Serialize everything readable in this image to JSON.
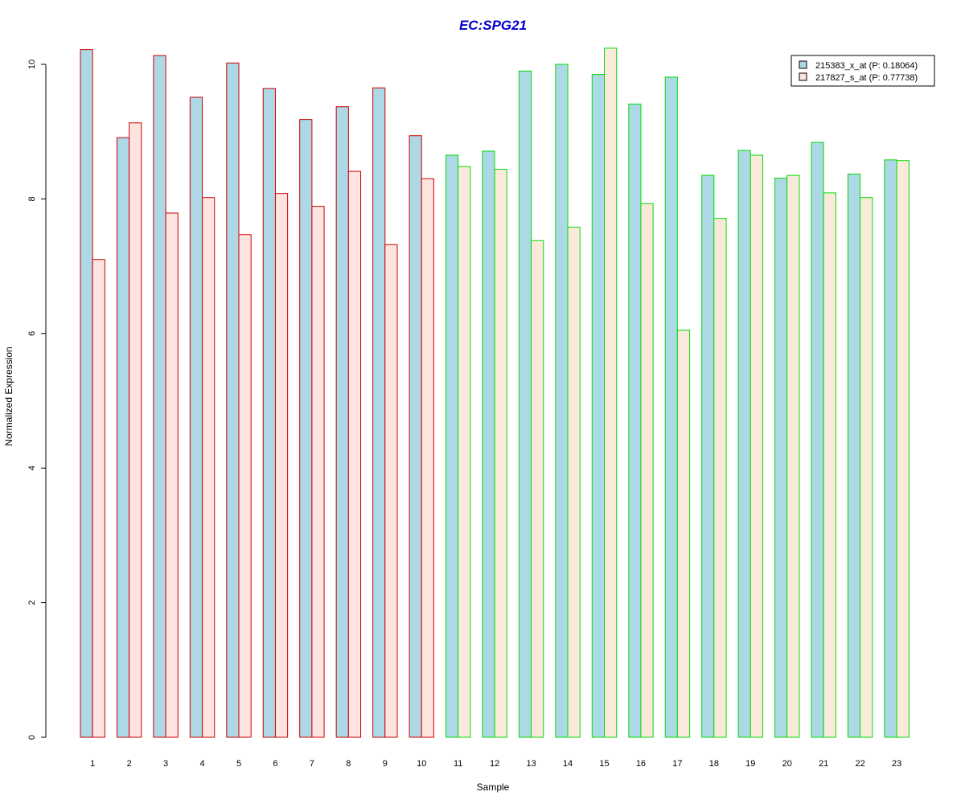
{
  "chart_data": {
    "type": "bar",
    "title": "EC:SPG21",
    "xlabel": "Sample",
    "ylabel": "Normalized Expression",
    "ylim": [
      0,
      10.3
    ],
    "yticks": [
      "0",
      "2",
      "4",
      "6",
      "8",
      "10"
    ],
    "grid": false,
    "legend_position": "top-right",
    "categories": [
      "1",
      "2",
      "3",
      "4",
      "5",
      "6",
      "7",
      "8",
      "9",
      "10",
      "11",
      "12",
      "13",
      "14",
      "15",
      "16",
      "17",
      "18",
      "19",
      "20",
      "21",
      "22",
      "23"
    ],
    "series": [
      {
        "name": "215383_x_at (P: 0.18064)",
        "fill": "#add8e6",
        "values": [
          10.22,
          8.91,
          10.13,
          9.51,
          10.02,
          9.64,
          9.18,
          9.37,
          9.65,
          8.94,
          8.65,
          8.71,
          9.9,
          10.0,
          9.85,
          9.41,
          9.81,
          8.35,
          8.72,
          8.31,
          8.84,
          8.37,
          8.58
        ]
      },
      {
        "name": "217827_s_at (P: 0.77738)",
        "fill_group1": "#fde4e0",
        "fill_group2": "#fbe9dc",
        "values": [
          7.1,
          9.13,
          7.79,
          8.02,
          7.47,
          8.08,
          7.89,
          8.41,
          7.32,
          8.3,
          8.48,
          8.44,
          7.38,
          7.58,
          10.24,
          7.93,
          6.05,
          7.71,
          8.65,
          8.35,
          8.09,
          8.02,
          8.57
        ]
      }
    ],
    "groups": [
      {
        "samples": [
          1,
          10
        ],
        "outline": "#cc0000"
      },
      {
        "samples": [
          11,
          23
        ],
        "outline": "#00dd00"
      }
    ],
    "colors": {
      "title": "#0000cc",
      "axis": "#000000"
    }
  }
}
